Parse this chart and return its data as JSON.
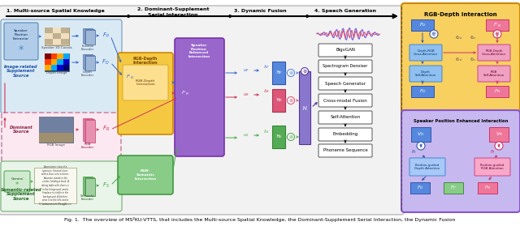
{
  "caption": "Fig. 1.  The overview of MS²KU-VTTS, that includes the Multi-source Spatial Knowledge, the Dominant-Supplement Serial Interaction, the Dynamic Fusion",
  "bg_color": "#ffffff",
  "section_titles": [
    "1. Multi-source Spatial Knowledge",
    "2. Dominant-Supplement\nSerial Interaction",
    "3. Dynamic Fusion",
    "4. Speech Generation"
  ],
  "right_panel_bg": "#f5d87a",
  "right_panel_bot_bg": "#c8b8f0",
  "main_outer_bg": "#eeeeee",
  "image_related_bg": "#dce8f0",
  "dominant_bg": "#f8dde8",
  "semantic_bg": "#e0f0e0"
}
